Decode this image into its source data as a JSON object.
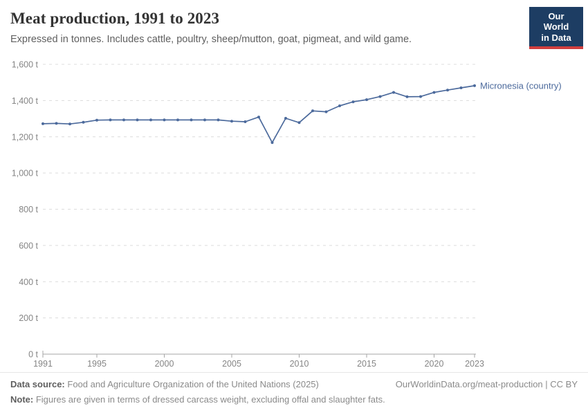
{
  "header": {
    "title": "Meat production, 1991 to 2023",
    "subtitle": "Expressed in tonnes. Includes cattle, poultry, sheep/mutton, goat, pigmeat, and wild game."
  },
  "logo": {
    "line1": "Our World",
    "line2": "in Data",
    "background_color": "#1d3d63",
    "stripe_color": "#d13e3e"
  },
  "chart_data": {
    "type": "line",
    "title": "Meat production, 1991 to 2023",
    "xlabel": "",
    "ylabel": "",
    "unit": "t",
    "grid": "horizontal-dashed",
    "legend_position": "end-of-line-label",
    "ylim": [
      0,
      1600
    ],
    "xlim": [
      1991,
      2023
    ],
    "y_ticks": [
      0,
      200,
      400,
      600,
      800,
      1000,
      1200,
      1400,
      1600
    ],
    "y_tick_labels": [
      "0 t",
      "200 t",
      "400 t",
      "600 t",
      "800 t",
      "1,000 t",
      "1,200 t",
      "1,400 t",
      "1,600 t"
    ],
    "x_ticks": [
      1991,
      1995,
      2000,
      2005,
      2010,
      2015,
      2020,
      2023
    ],
    "x_tick_labels": [
      "1991",
      "1995",
      "2000",
      "2005",
      "2010",
      "2015",
      "2020",
      "2023"
    ],
    "x": [
      1991,
      1992,
      1993,
      1994,
      1995,
      1996,
      1997,
      1998,
      1999,
      2000,
      2001,
      2002,
      2003,
      2004,
      2005,
      2006,
      2007,
      2008,
      2009,
      2010,
      2011,
      2012,
      2013,
      2014,
      2015,
      2016,
      2017,
      2018,
      2019,
      2020,
      2021,
      2022,
      2023
    ],
    "series": [
      {
        "name": "Micronesia (country)",
        "color": "#4C6A9C",
        "values": [
          1272,
          1274,
          1271,
          1280,
          1292,
          1293,
          1293,
          1293,
          1293,
          1293,
          1293,
          1293,
          1293,
          1293,
          1286,
          1283,
          1309,
          1168,
          1302,
          1278,
          1343,
          1338,
          1371,
          1393,
          1405,
          1422,
          1445,
          1421,
          1422,
          1445,
          1458,
          1470,
          1482
        ]
      }
    ]
  },
  "footer": {
    "data_source_label": "Data source:",
    "data_source": "Food and Agriculture Organization of the United Nations (2025)",
    "note_label": "Note:",
    "note": "Figures are given in terms of dressed carcass weight, excluding offal and slaughter fats.",
    "attribution": "OurWorldinData.org/meat-production | CC BY"
  },
  "colors": {
    "line": "#4C6A9C",
    "gridline": "#dcdcdc",
    "axis": "#a5a5a5",
    "tick_label": "#858585"
  }
}
